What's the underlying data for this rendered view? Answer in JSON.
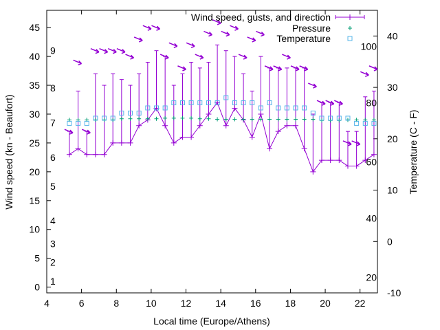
{
  "chart_data": {
    "type": "line",
    "legend_position": "top-right",
    "xlabel": "Local time (Europe/Athens)",
    "ylabel": "Wind speed (kn - Beaufort)",
    "y2label": "Temperature (C - F)",
    "xlim": [
      4,
      23
    ],
    "ylim": [
      -1,
      48
    ],
    "y2lim": [
      -10,
      45
    ],
    "x_ticks": [
      4,
      6,
      8,
      10,
      12,
      14,
      16,
      18,
      20,
      22
    ],
    "y_ticks": [
      0,
      5,
      10,
      15,
      20,
      25,
      30,
      35,
      40,
      45
    ],
    "y2_ticks": [
      -10,
      0,
      10,
      20,
      30,
      40
    ],
    "beaufort_labels": [
      {
        "label": "1",
        "y": 1.0
      },
      {
        "label": "2",
        "y": 4.3
      },
      {
        "label": "3",
        "y": 7.5
      },
      {
        "label": "4",
        "y": 11.5
      },
      {
        "label": "5",
        "y": 17.5
      },
      {
        "label": "6",
        "y": 22.5
      },
      {
        "label": "7",
        "y": 28.5
      },
      {
        "label": "8",
        "y": 34.5
      },
      {
        "label": "9",
        "y": 41.0
      }
    ],
    "fahrenheit_labels": [
      {
        "label": "20",
        "y2": -7
      },
      {
        "label": "40",
        "y2": 4.5
      },
      {
        "label": "60",
        "y2": 15.5
      },
      {
        "label": "80",
        "y2": 27
      },
      {
        "label": "100",
        "y2": 38
      }
    ],
    "series": [
      {
        "name": "Wind speed, gusts, and direction",
        "color": "#9400d3",
        "x": [
          5.3,
          5.8,
          6.3,
          6.8,
          7.3,
          7.8,
          8.3,
          8.8,
          9.3,
          9.8,
          10.3,
          10.8,
          11.3,
          11.8,
          12.3,
          12.8,
          13.3,
          13.8,
          14.3,
          14.8,
          15.3,
          15.8,
          16.3,
          16.8,
          17.3,
          17.8,
          18.3,
          18.8,
          19.3,
          19.8,
          20.3,
          20.8,
          21.3,
          21.8,
          22.3,
          22.8
        ],
        "speed": [
          23,
          24,
          23,
          23,
          23,
          25,
          25,
          25,
          28,
          29,
          31,
          28,
          25,
          26,
          26,
          28,
          30,
          32,
          28,
          31,
          29,
          26,
          30,
          24,
          27,
          28,
          28,
          24,
          20,
          22,
          22,
          22,
          21,
          21,
          22,
          23
        ],
        "gust": [
          27,
          34,
          27,
          37,
          35,
          37,
          36,
          35,
          37,
          39,
          41,
          40,
          35,
          37,
          39,
          38,
          39,
          42,
          41,
          40,
          37,
          34,
          40,
          38,
          38,
          38,
          38,
          38,
          30,
          32,
          32,
          32,
          27,
          27,
          33,
          34
        ],
        "direction_label_y": [
          27,
          39,
          27,
          41,
          41,
          41,
          41,
          40,
          43,
          45,
          45,
          40,
          42,
          38,
          42,
          40,
          44,
          46,
          44,
          45,
          40,
          43,
          44,
          38,
          38,
          40,
          38,
          38,
          35,
          32,
          32,
          32,
          25,
          25,
          37,
          38
        ]
      },
      {
        "name": "Pressure",
        "color": "#009e73",
        "x": [
          5.3,
          5.8,
          6.3,
          6.8,
          7.3,
          7.8,
          8.3,
          8.8,
          9.3,
          9.8,
          10.3,
          10.8,
          11.3,
          11.8,
          12.3,
          12.8,
          13.3,
          13.8,
          14.3,
          14.8,
          15.3,
          15.8,
          16.3,
          16.8,
          17.3,
          17.8,
          18.3,
          18.8,
          19.3,
          19.8,
          20.3,
          20.8,
          21.3,
          21.8,
          22.3,
          22.8
        ],
        "values": [
          29,
          29,
          29,
          29,
          29,
          29,
          29.2,
          29.2,
          29.2,
          29.2,
          29.2,
          29.3,
          29.3,
          29.3,
          29.3,
          29.2,
          29.2,
          29.1,
          29.1,
          29.1,
          29.1,
          29.1,
          29.1,
          29.1,
          29.1,
          29.1,
          29.1,
          29.1,
          29.1,
          28.9,
          28.9,
          28.9,
          29,
          29,
          29,
          29
        ]
      },
      {
        "name": "Temperature",
        "color": "#56b4e9",
        "x": [
          5.3,
          5.8,
          6.3,
          6.8,
          7.3,
          7.8,
          8.3,
          8.8,
          9.3,
          9.8,
          10.3,
          10.8,
          11.3,
          11.8,
          12.3,
          12.8,
          13.3,
          13.8,
          14.3,
          14.8,
          15.3,
          15.8,
          16.3,
          16.8,
          17.3,
          17.8,
          18.3,
          18.8,
          19.3,
          19.8,
          20.3,
          20.8,
          21.3,
          21.8,
          22.3,
          22.8
        ],
        "values": [
          23,
          23,
          23,
          24,
          24,
          24,
          25,
          25,
          25,
          26,
          26,
          26,
          27,
          27,
          27,
          27,
          27,
          27,
          28,
          27,
          27,
          27,
          26,
          27,
          26,
          26,
          26,
          26,
          25,
          24,
          24,
          24,
          24,
          23,
          23,
          23
        ]
      }
    ]
  }
}
